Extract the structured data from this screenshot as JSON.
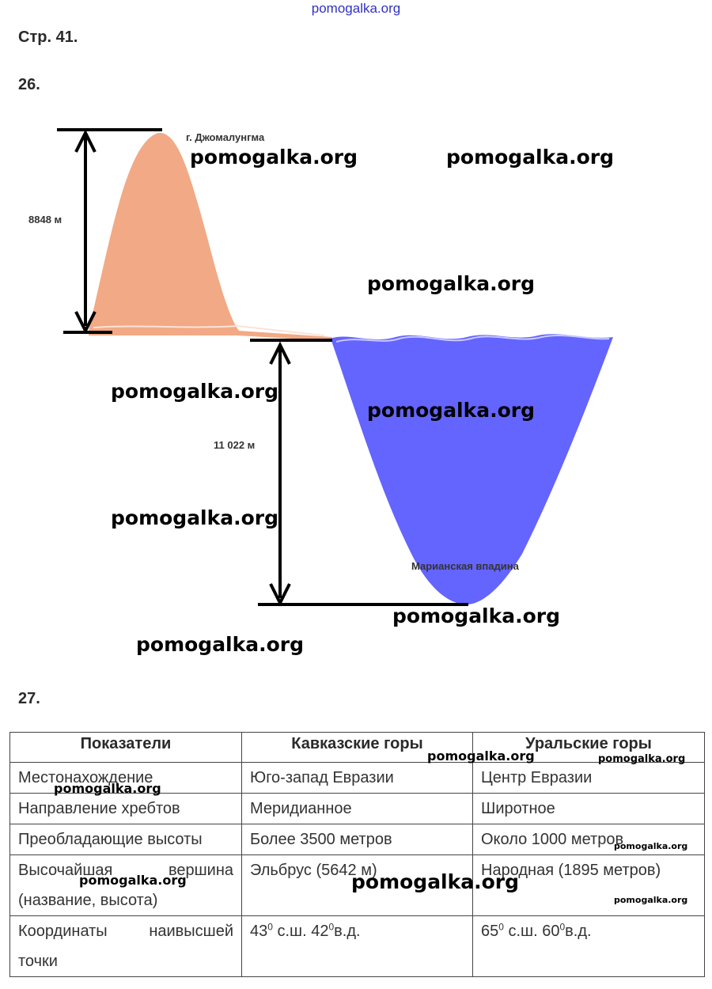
{
  "header": {
    "site": "pomogalka.org"
  },
  "page": {
    "label": "Стр. 41."
  },
  "task26": {
    "number": "26.",
    "everest_label": "г. Джомалунгма",
    "everest_height": "8848 м",
    "trench_depth": "11 022 м",
    "trench_label": "Марианская впадина",
    "colors": {
      "mountain": "#f2a985",
      "water": "#6464ff",
      "arrows": "#000000"
    }
  },
  "task27": {
    "number": "27.",
    "headers": [
      "Показатели",
      "Кавказские горы",
      "Уральские горы"
    ],
    "rows": [
      {
        "param": "Местонахождение",
        "caucasus": "Юго-запад Евразии",
        "urals": "Центр Евразии"
      },
      {
        "param": "Направление хребтов",
        "caucasus": "Меридианное",
        "urals": "Широтное"
      },
      {
        "param": "Преобладающие высоты",
        "caucasus": "Более 3500 метров",
        "urals": "Около 1000 метров"
      },
      {
        "param_line1_a": "Высочайшая",
        "param_line1_b": "вершина",
        "param_line2": "(название, высота)",
        "caucasus": "Эльбрус (5642 м)",
        "urals": "Народная (1895 метров)"
      },
      {
        "param_line1_a": "Координаты",
        "param_line1_b": "наивысшей",
        "param_line2": "точки",
        "caucasus_lat": "43",
        "caucasus_lat_sup": "0",
        "caucasus_lat_suffix": " с.ш. 42",
        "caucasus_lon_sup": "0",
        "caucasus_lon_suffix": "в.д.",
        "urals_lat": "65",
        "urals_lat_sup": "0",
        "urals_lat_suffix": " с.ш. 60",
        "urals_lon_sup": "0",
        "urals_lon_suffix": "в.д."
      }
    ]
  },
  "watermark": "pomogalka.org"
}
